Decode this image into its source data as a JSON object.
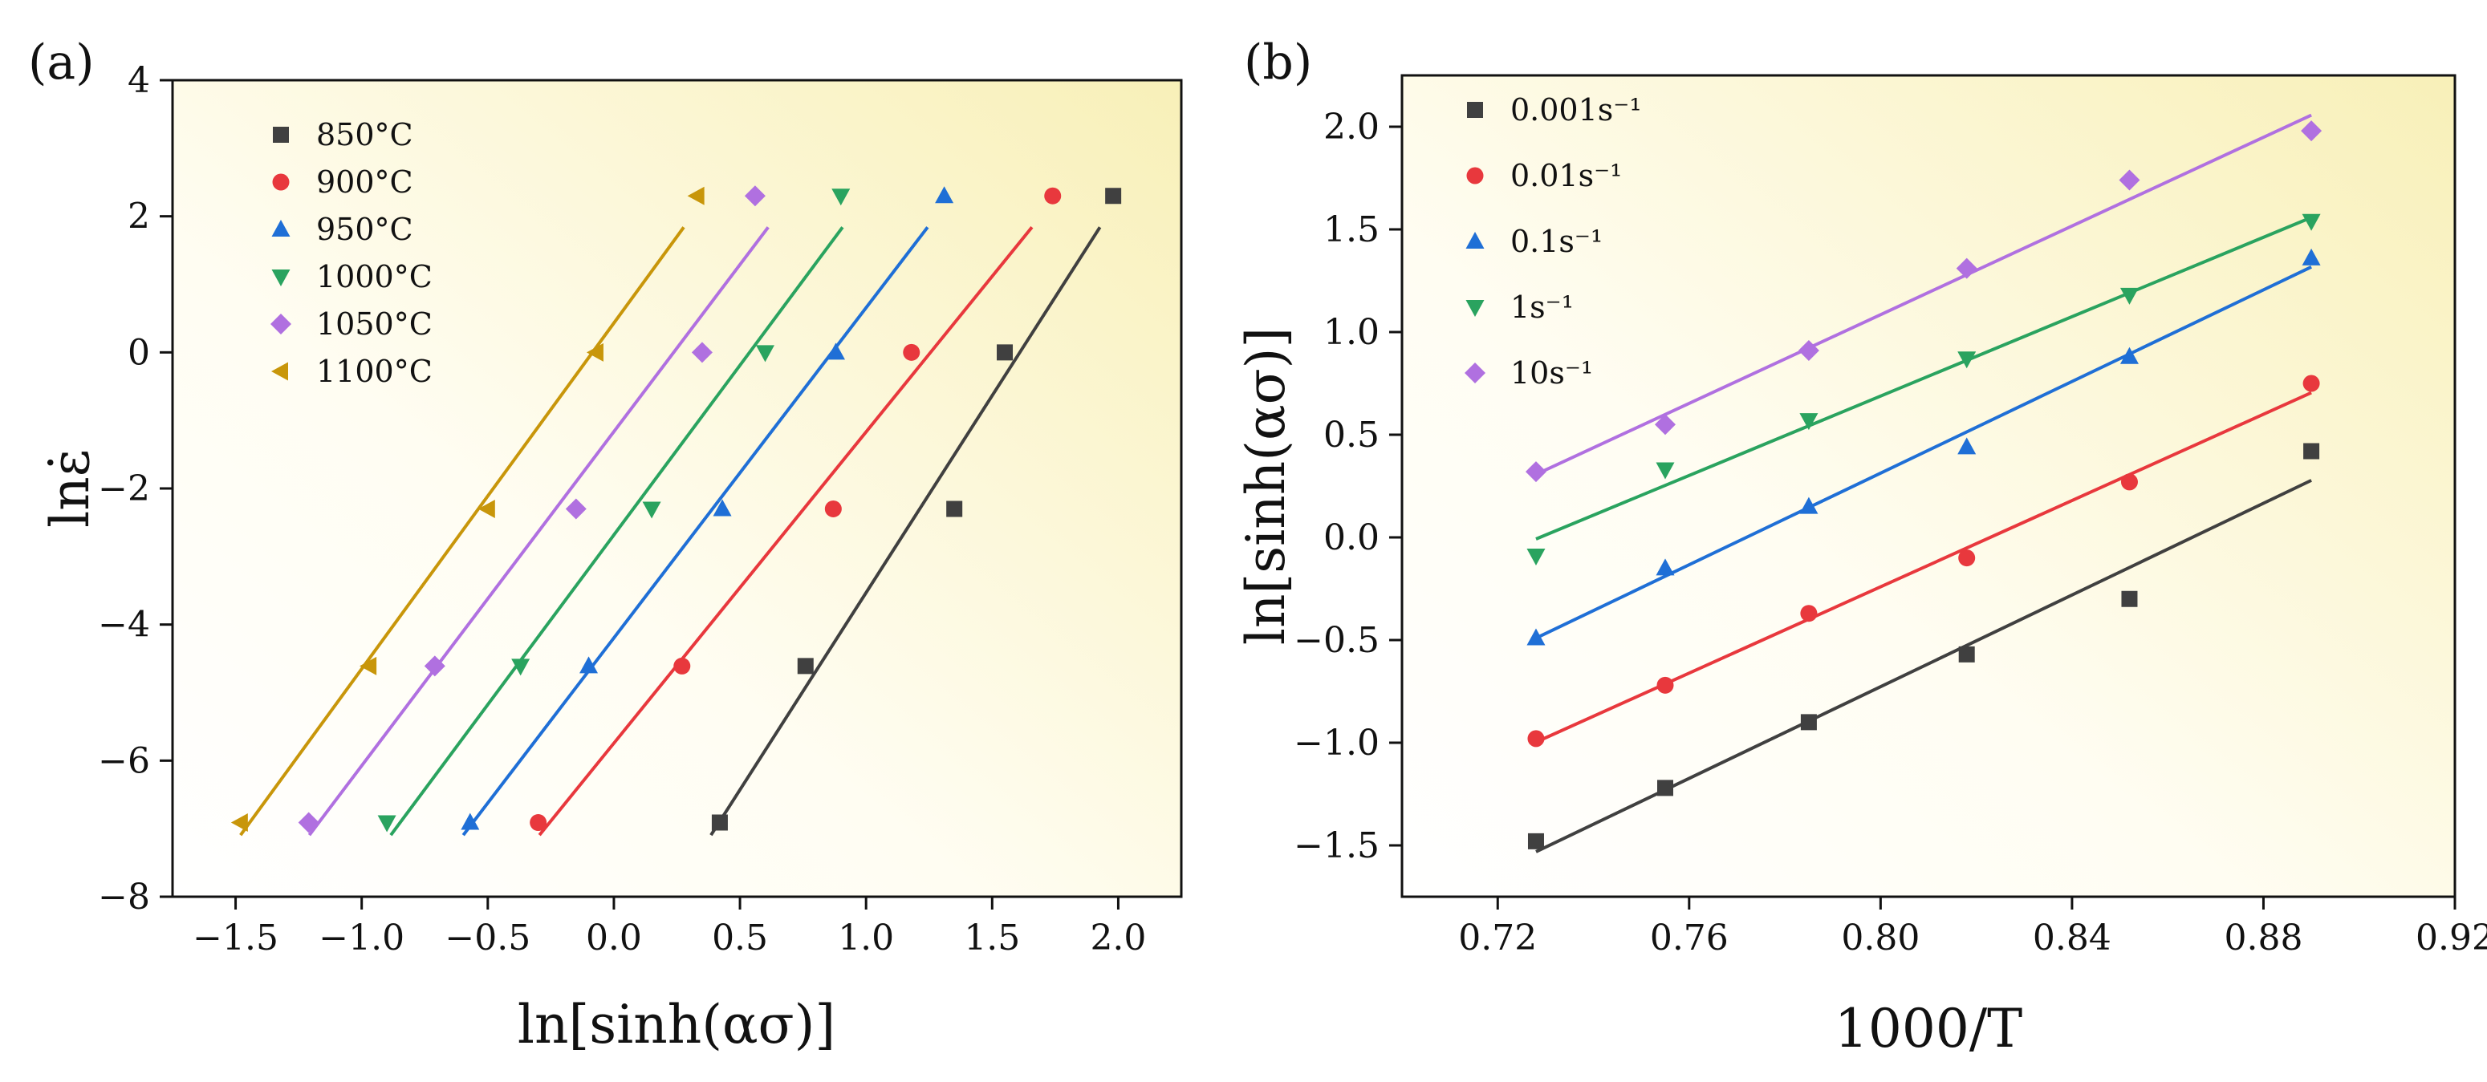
{
  "figure": {
    "panel_a_label": "(a)",
    "panel_b_label": "(b)"
  },
  "chart_data": [
    {
      "type": "scatter",
      "panel": "(a)",
      "title": "",
      "xlabel": "ln[sinh(ασ)]",
      "ylabel": "lnε̇",
      "xlim": [
        -1.75,
        2.25
      ],
      "ylim": [
        -8,
        4
      ],
      "xticks": [
        -1.5,
        -1.0,
        -0.5,
        0.0,
        0.5,
        1.0,
        1.5,
        2.0
      ],
      "xtick_labels": [
        "−1.5",
        "−1.0",
        "−0.5",
        "0.0",
        "0.5",
        "1.0",
        "1.5",
        "2.0"
      ],
      "yticks": [
        -8,
        -6,
        -4,
        -2,
        0,
        2,
        4
      ],
      "ytick_labels": [
        "−8",
        "−6",
        "−4",
        "−2",
        "0",
        "2",
        "4"
      ],
      "grid": false,
      "legend_position": "top-left",
      "fit": "linear",
      "series": [
        {
          "name": "850°C",
          "color": "#404040",
          "marker": "square",
          "x": [
            0.42,
            0.76,
            1.35,
            1.55,
            1.98
          ],
          "y": [
            -6.91,
            -4.61,
            -2.3,
            0.0,
            2.3
          ]
        },
        {
          "name": "900°C",
          "color": "#e8383d",
          "marker": "circle",
          "x": [
            -0.3,
            0.27,
            0.87,
            1.18,
            1.74
          ],
          "y": [
            -6.91,
            -4.61,
            -2.3,
            0.0,
            2.3
          ]
        },
        {
          "name": "950°C",
          "color": "#1f6fd6",
          "marker": "triangle-up",
          "x": [
            -0.57,
            -0.1,
            0.43,
            0.88,
            1.31
          ],
          "y": [
            -6.91,
            -4.61,
            -2.3,
            0.0,
            2.3
          ]
        },
        {
          "name": "1000°C",
          "color": "#2aa35f",
          "marker": "triangle-down",
          "x": [
            -0.9,
            -0.37,
            0.15,
            0.6,
            0.9
          ],
          "y": [
            -6.91,
            -4.61,
            -2.3,
            0.0,
            2.3
          ]
        },
        {
          "name": "1050°C",
          "color": "#b070e0",
          "marker": "diamond",
          "x": [
            -1.21,
            -0.71,
            -0.15,
            0.35,
            0.56
          ],
          "y": [
            -6.91,
            -4.61,
            -2.3,
            0.0,
            2.3
          ]
        },
        {
          "name": "1100°C",
          "color": "#c8960a",
          "marker": "triangle-left",
          "x": [
            -1.48,
            -0.97,
            -0.5,
            -0.07,
            0.33
          ],
          "y": [
            -6.91,
            -4.61,
            -2.3,
            0.0,
            2.3
          ]
        }
      ]
    },
    {
      "type": "scatter",
      "panel": "(b)",
      "title": "",
      "xlabel": "1000/T",
      "ylabel": "ln[sinh(ασ)]",
      "xlim": [
        0.7,
        0.92
      ],
      "ylim": [
        -1.75,
        2.25
      ],
      "xticks": [
        0.72,
        0.76,
        0.8,
        0.84,
        0.88,
        0.92
      ],
      "xtick_labels": [
        "0.72",
        "0.76",
        "0.80",
        "0.84",
        "0.88",
        "0.92"
      ],
      "yticks": [
        -1.5,
        -1.0,
        -0.5,
        0.0,
        0.5,
        1.0,
        1.5,
        2.0
      ],
      "ytick_labels": [
        "−1.5",
        "−1.0",
        "−0.5",
        "0.0",
        "0.5",
        "1.0",
        "1.5",
        "2.0"
      ],
      "grid": false,
      "legend_position": "top-left",
      "fit": "linear",
      "series": [
        {
          "name": "0.001s⁻¹",
          "color": "#404040",
          "marker": "square",
          "x": [
            0.728,
            0.755,
            0.785,
            0.818,
            0.852,
            0.89
          ],
          "y": [
            -1.48,
            -1.22,
            -0.9,
            -0.57,
            -0.3,
            0.42
          ]
        },
        {
          "name": "0.01s⁻¹",
          "color": "#e8383d",
          "marker": "circle",
          "x": [
            0.728,
            0.755,
            0.785,
            0.818,
            0.852,
            0.89
          ],
          "y": [
            -0.98,
            -0.72,
            -0.37,
            -0.1,
            0.27,
            0.75
          ]
        },
        {
          "name": "0.1s⁻¹",
          "color": "#1f6fd6",
          "marker": "triangle-up",
          "x": [
            0.728,
            0.755,
            0.785,
            0.818,
            0.852,
            0.89
          ],
          "y": [
            -0.49,
            -0.15,
            0.15,
            0.44,
            0.88,
            1.36
          ]
        },
        {
          "name": "1s⁻¹",
          "color": "#2aa35f",
          "marker": "triangle-down",
          "x": [
            0.728,
            0.755,
            0.785,
            0.818,
            0.852,
            0.89
          ],
          "y": [
            -0.09,
            0.33,
            0.57,
            0.87,
            1.18,
            1.54
          ]
        },
        {
          "name": "10s⁻¹",
          "color": "#b070e0",
          "marker": "diamond",
          "x": [
            0.728,
            0.755,
            0.785,
            0.818,
            0.852,
            0.89
          ],
          "y": [
            0.32,
            0.55,
            0.91,
            1.31,
            1.74,
            1.98
          ]
        }
      ]
    }
  ]
}
